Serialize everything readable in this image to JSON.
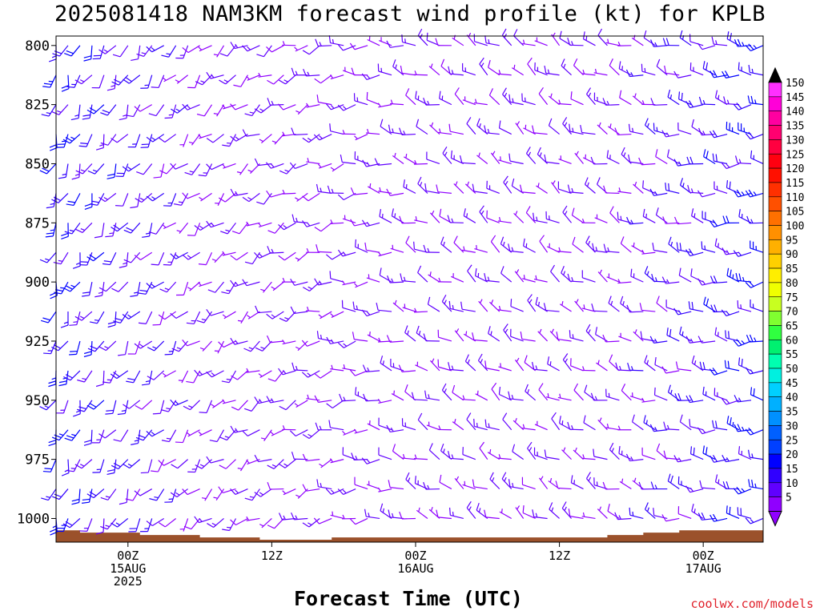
{
  "title": "2025081418 NAM3KM forecast wind profile (kt) for KPLB",
  "credit": "coolwx.com/models",
  "chart_data": {
    "type": "wind-barb-profile",
    "title": "2025081418 NAM3KM forecast wind profile (kt) for KPLB",
    "xlabel": "Forecast Time (UTC)",
    "ylabel": "",
    "y_ticks": [
      800,
      825,
      850,
      875,
      900,
      925,
      950,
      975,
      1000
    ],
    "ylim": [
      1010,
      796
    ],
    "xlim_hours": [
      -6,
      53
    ],
    "x_ticks": [
      {
        "hour": 0,
        "lines": [
          "00Z",
          "15AUG",
          "2025"
        ]
      },
      {
        "hour": 12,
        "lines": [
          "12Z"
        ]
      },
      {
        "hour": 24,
        "lines": [
          "00Z",
          "16AUG"
        ]
      },
      {
        "hour": 36,
        "lines": [
          "12Z"
        ]
      },
      {
        "hour": 48,
        "lines": [
          "00Z",
          "17AUG"
        ]
      }
    ],
    "surface_pressure": [
      {
        "hour": -6,
        "p": 1005
      },
      {
        "hour": -5,
        "p": 1005
      },
      {
        "hour": -4,
        "p": 1006
      },
      {
        "hour": -1,
        "p": 1006
      },
      {
        "hour": 1,
        "p": 1007
      },
      {
        "hour": 5,
        "p": 1007
      },
      {
        "hour": 6,
        "p": 1008
      },
      {
        "hour": 10,
        "p": 1008
      },
      {
        "hour": 11,
        "p": 1009
      },
      {
        "hour": 16,
        "p": 1009
      },
      {
        "hour": 17,
        "p": 1008
      },
      {
        "hour": 28,
        "p": 1008
      },
      {
        "hour": 34,
        "p": 1008
      },
      {
        "hour": 40,
        "p": 1007
      },
      {
        "hour": 43,
        "p": 1006
      },
      {
        "hour": 46,
        "p": 1005
      },
      {
        "hour": 50,
        "p": 1005
      },
      {
        "hour": 53,
        "p": 1004
      }
    ],
    "wind_profile": {
      "hours_step": 1,
      "pressure_step": 12.5,
      "regime_samples": [
        {
          "hour": -6,
          "dir": 200,
          "speed": 20
        },
        {
          "hour": 0,
          "dir": 210,
          "speed": 15
        },
        {
          "hour": 6,
          "dir": 225,
          "speed": 10
        },
        {
          "hour": 12,
          "dir": 240,
          "speed": 10
        },
        {
          "hour": 18,
          "dir": 260,
          "speed": 10
        },
        {
          "hour": 24,
          "dir": 290,
          "speed": 10
        },
        {
          "hour": 30,
          "dir": 300,
          "speed": 10
        },
        {
          "hour": 36,
          "dir": 300,
          "speed": 10
        },
        {
          "hour": 42,
          "dir": 290,
          "speed": 10
        },
        {
          "hour": 48,
          "dir": 280,
          "speed": 15
        },
        {
          "hour": 53,
          "dir": 270,
          "speed": 20
        }
      ]
    },
    "colorbar": {
      "labels": [
        "150",
        "145",
        "140",
        "135",
        "130",
        "125",
        "120",
        "115",
        "110",
        "105",
        "100",
        "95",
        "90",
        "85",
        "80",
        "75",
        "70",
        "65",
        "60",
        "55",
        "50",
        "45",
        "40",
        "35",
        "30",
        "25",
        "20",
        "15",
        "10",
        "5"
      ],
      "colors": [
        "#ff30ff",
        "#ff00d8",
        "#ff00a0",
        "#ff0070",
        "#ff0040",
        "#ff0010",
        "#ff1000",
        "#ff3000",
        "#ff5000",
        "#ff7000",
        "#ff9000",
        "#ffb000",
        "#ffd000",
        "#ffee00",
        "#f0ff00",
        "#c8ff20",
        "#80ff30",
        "#30ff40",
        "#00f070",
        "#00ffb0",
        "#00f0e0",
        "#00d0ff",
        "#00b0ff",
        "#0090ff",
        "#0060ff",
        "#0040ff",
        "#0000ff",
        "#3000ff",
        "#6000ff",
        "#9000ff"
      ],
      "top_cap": "#000000",
      "bottom_cap": "#9000ff"
    }
  }
}
